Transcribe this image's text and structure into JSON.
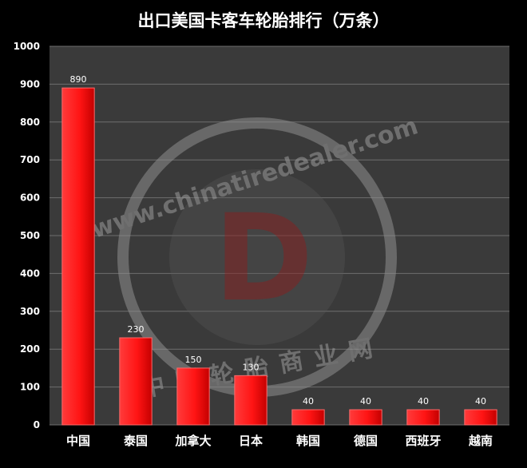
{
  "watermark": {
    "url_text": "www.chinatiredealer.com",
    "cn_text": "中国轮胎商业网",
    "logo_letter": "D"
  },
  "chart_data": {
    "type": "bar",
    "title": "出口美国卡客车轮胎排行（万条）",
    "xlabel": "",
    "ylabel": "",
    "categories": [
      "中国",
      "泰国",
      "加拿大",
      "日本",
      "韩国",
      "德国",
      "西班牙",
      "越南"
    ],
    "values": [
      890,
      230,
      150,
      130,
      40,
      40,
      40,
      40
    ],
    "data_labels": [
      "890",
      "230",
      "150",
      "130",
      "40",
      "40",
      "40",
      "40"
    ],
    "ylim": [
      0,
      1000
    ],
    "yticks": [
      "0",
      "100",
      "200",
      "300",
      "400",
      "500",
      "600",
      "700",
      "800",
      "900",
      "1000"
    ],
    "grid": true,
    "legend": "none",
    "colors": {
      "bar": "#ff1a1a",
      "bar_dark": "#b00000",
      "plot_bg": "#3a3a3a",
      "page_bg": "#000000",
      "grid": "#6a6a6a",
      "text": "#ffffff",
      "watermark": "#9a9a9a",
      "logo": "#7a1f1f"
    }
  }
}
